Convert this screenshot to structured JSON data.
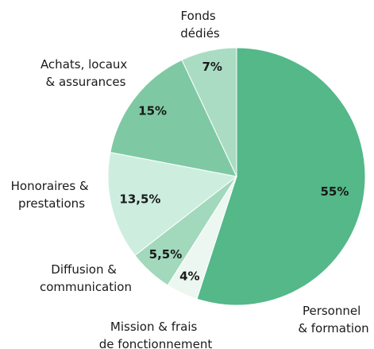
{
  "chart_data": {
    "type": "pie",
    "categories": [
      "Personnel & formation",
      "Mission & frais de fonctionnement",
      "Diffusion & communication",
      "Honoraires & prestations",
      "Achats, locaux & assurances",
      "Fonds dédiés"
    ],
    "values": [
      55,
      4,
      5.5,
      13.5,
      15,
      7
    ],
    "value_labels": [
      "55%",
      "4%",
      "5,5%",
      "13,5%",
      "15%",
      "7%"
    ],
    "colors": [
      "#54b889",
      "#ebf7f0",
      "#a2d8bc",
      "#cdeedf",
      "#7ec9a4",
      "#aadcc4"
    ]
  }
}
